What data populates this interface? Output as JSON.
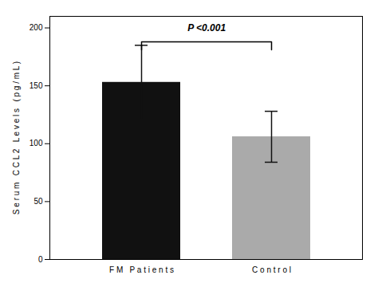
{
  "chart_data": {
    "type": "bar",
    "categories": [
      "F M   P a t i e n t s",
      "C o n t r o l"
    ],
    "values": [
      153,
      106
    ],
    "errors": [
      32,
      22
    ],
    "colors": [
      "#111111",
      "#aaaaaa"
    ],
    "ylabel": "S e r u m   C C L 2   L e v e l s   ( p g / m L )",
    "ylim": [
      0,
      210
    ],
    "yticks": [
      0,
      50,
      100,
      150,
      200
    ],
    "annotations": [
      {
        "text": "P <0.001",
        "from": "F M   P a t i e n t s",
        "to": "C o n t r o l",
        "y": 197,
        "bracket_y": 188
      }
    ]
  }
}
